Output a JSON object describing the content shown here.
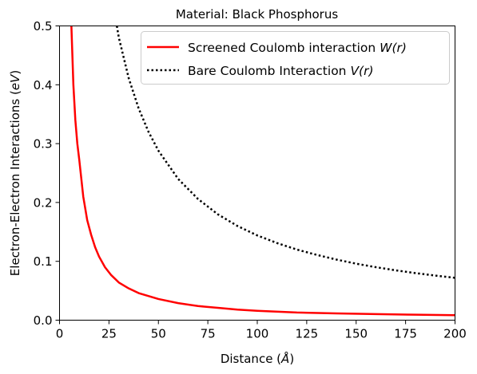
{
  "chart_data": {
    "type": "line",
    "title": "Material: Black Phosphorus",
    "xlabel": {
      "prefix": "Distance (",
      "symbol": "Å",
      "suffix": ")"
    },
    "ylabel": {
      "prefix": "Electron-Electron Interactions  (",
      "symbol": "eV",
      "suffix": ")"
    },
    "xlim": [
      0,
      200
    ],
    "ylim": [
      0,
      0.5
    ],
    "xticks": [
      "0",
      "25",
      "50",
      "75",
      "100",
      "125",
      "150",
      "175",
      "200"
    ],
    "yticks": [
      "0.0",
      "0.1",
      "0.2",
      "0.3",
      "0.4",
      "0.5"
    ],
    "grid": false,
    "legend_position": "top-right",
    "series": [
      {
        "name": "Screened Coulomb interaction",
        "name_symbol": "W(r)",
        "color": "#ff0000",
        "style": "solid",
        "x": [
          6,
          7,
          8,
          9,
          10,
          12,
          14,
          16,
          18,
          20,
          23,
          26,
          30,
          35,
          40,
          50,
          60,
          70,
          80,
          90,
          100,
          120,
          140,
          160,
          180,
          200
        ],
        "y": [
          0.5,
          0.4,
          0.34,
          0.3,
          0.272,
          0.21,
          0.17,
          0.145,
          0.124,
          0.108,
          0.09,
          0.077,
          0.064,
          0.054,
          0.046,
          0.036,
          0.029,
          0.024,
          0.021,
          0.018,
          0.016,
          0.013,
          0.0115,
          0.0103,
          0.0093,
          0.0085
        ]
      },
      {
        "name": "Bare Coulomb Interaction",
        "name_symbol": "V(r)",
        "color": "#000000",
        "style": "dotted",
        "x": [
          29,
          30,
          35,
          40,
          45,
          50,
          60,
          70,
          80,
          90,
          100,
          110,
          120,
          130,
          140,
          150,
          160,
          170,
          180,
          190,
          200
        ],
        "y": [
          0.5,
          0.48,
          0.411,
          0.36,
          0.32,
          0.288,
          0.24,
          0.206,
          0.18,
          0.16,
          0.144,
          0.131,
          0.12,
          0.111,
          0.103,
          0.096,
          0.09,
          0.0847,
          0.08,
          0.0758,
          0.072
        ]
      }
    ]
  }
}
